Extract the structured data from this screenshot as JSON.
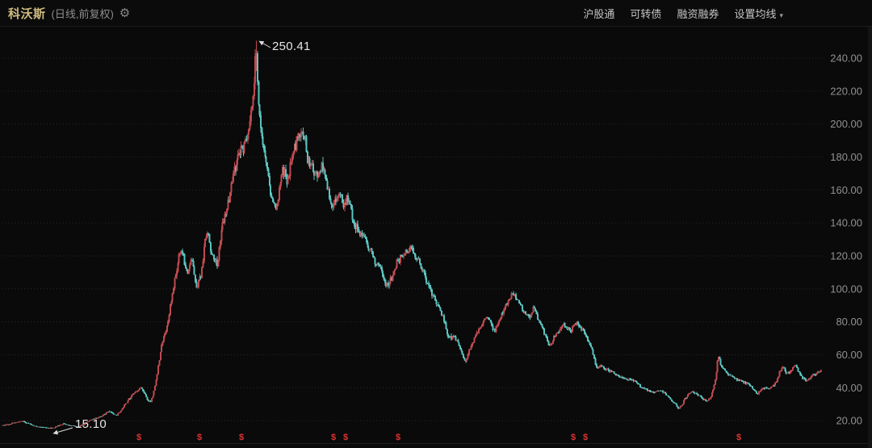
{
  "header": {
    "symbol_name": "科沃斯",
    "chart_mode": "(日线,前复权)",
    "gear_icon": "gear",
    "menu": [
      {
        "label": "沪股通",
        "has_dropdown": false
      },
      {
        "label": "可转债",
        "has_dropdown": false
      },
      {
        "label": "融资融券",
        "has_dropdown": false
      },
      {
        "label": "设置均线",
        "has_dropdown": true
      }
    ],
    "dropdown_caret": "▾"
  },
  "colors": {
    "background": "#0a0a0a",
    "up_candle": "#c04a50",
    "down_candle": "#5ac4c0",
    "grid": "#292929",
    "axis_label": "#909090",
    "symbol_accent": "#cdbb7d",
    "annotation": "#dcdcdc",
    "dividend_marker": "#e03232",
    "header_divider": "#1c1c1c"
  },
  "chart_data": {
    "type": "candlestick",
    "title": "科沃斯 日线 前复权",
    "period": "日线",
    "adjustment": "前复权",
    "legend_position": "none",
    "grid": "horizontal-dotted",
    "y_axis": {
      "side": "right",
      "ticks": [
        "240.00",
        "220.00",
        "200.00",
        "180.00",
        "160.00",
        "140.00",
        "120.00",
        "100.00",
        "80.00",
        "60.00",
        "40.00",
        "20.00"
      ],
      "price_top_gridline": 240,
      "price_step": 20,
      "visible_range_approx": [
        10,
        255
      ]
    },
    "annotations": {
      "peak": {
        "label": "250.41",
        "value": 250.41
      },
      "low": {
        "label": "15.10",
        "value": 15.1
      }
    },
    "all_time_high": 250.41,
    "all_time_low": 15.1,
    "dividend_marker_symbol": "$",
    "dividend_markers_x": [
      172,
      247,
      299,
      413,
      428,
      493,
      710,
      725,
      915
    ],
    "price_path": [
      [
        3,
        17
      ],
      [
        12,
        17.8
      ],
      [
        22,
        19
      ],
      [
        30,
        19.6
      ],
      [
        38,
        18
      ],
      [
        45,
        16.6
      ],
      [
        52,
        16
      ],
      [
        60,
        15.7
      ],
      [
        68,
        15.6
      ],
      [
        74,
        17
      ],
      [
        80,
        18.2
      ],
      [
        86,
        17.2
      ],
      [
        93,
        16.6
      ],
      [
        100,
        16.5
      ],
      [
        106,
        18
      ],
      [
        112,
        20
      ],
      [
        118,
        21
      ],
      [
        124,
        22
      ],
      [
        131,
        24
      ],
      [
        137,
        26
      ],
      [
        142,
        24
      ],
      [
        146,
        23.5
      ],
      [
        151,
        26
      ],
      [
        156,
        30
      ],
      [
        161,
        33
      ],
      [
        166,
        36
      ],
      [
        171,
        38
      ],
      [
        176,
        40
      ],
      [
        181,
        36
      ],
      [
        185,
        32
      ],
      [
        188,
        31
      ],
      [
        192,
        38
      ],
      [
        196,
        48
      ],
      [
        200,
        62
      ],
      [
        204,
        70
      ],
      [
        208,
        76
      ],
      [
        212,
        88
      ],
      [
        216,
        100
      ],
      [
        220,
        112
      ],
      [
        224,
        122
      ],
      [
        227,
        124
      ],
      [
        230,
        116
      ],
      [
        233,
        110
      ],
      [
        236,
        114
      ],
      [
        239,
        118
      ],
      [
        242,
        110
      ],
      [
        245,
        101
      ],
      [
        249,
        106
      ],
      [
        252,
        113
      ],
      [
        255,
        128
      ],
      [
        258,
        136
      ],
      [
        261,
        128
      ],
      [
        264,
        121
      ],
      [
        268,
        116
      ],
      [
        271,
        115
      ],
      [
        274,
        128
      ],
      [
        277,
        140
      ],
      [
        281,
        147
      ],
      [
        284,
        152
      ],
      [
        287,
        160
      ],
      [
        290,
        168
      ],
      [
        294,
        176
      ],
      [
        297,
        182
      ],
      [
        300,
        184
      ],
      [
        303,
        186
      ],
      [
        306,
        190
      ],
      [
        309,
        196
      ],
      [
        312,
        205
      ],
      [
        315,
        220
      ],
      [
        318,
        243
      ],
      [
        320,
        232
      ],
      [
        322,
        212
      ],
      [
        325,
        196
      ],
      [
        327,
        185
      ],
      [
        330,
        180
      ],
      [
        333,
        172
      ],
      [
        336,
        158
      ],
      [
        339,
        152
      ],
      [
        342,
        150
      ],
      [
        345,
        152
      ],
      [
        348,
        162
      ],
      [
        351,
        174
      ],
      [
        354,
        170
      ],
      [
        357,
        164
      ],
      [
        360,
        172
      ],
      [
        363,
        180
      ],
      [
        366,
        185
      ],
      [
        369,
        189
      ],
      [
        372,
        191
      ],
      [
        375,
        194
      ],
      [
        377,
        196
      ],
      [
        380,
        188
      ],
      [
        383,
        178
      ],
      [
        386,
        174
      ],
      [
        390,
        172
      ],
      [
        394,
        170
      ],
      [
        397,
        171
      ],
      [
        400,
        177
      ],
      [
        403,
        170
      ],
      [
        406,
        164
      ],
      [
        409,
        156
      ],
      [
        412,
        152
      ],
      [
        415,
        150
      ],
      [
        418,
        155
      ],
      [
        421,
        160
      ],
      [
        424,
        156
      ],
      [
        427,
        152
      ],
      [
        430,
        154
      ],
      [
        433,
        155
      ],
      [
        436,
        148
      ],
      [
        440,
        139
      ],
      [
        444,
        136
      ],
      [
        447,
        134
      ],
      [
        450,
        132
      ],
      [
        453,
        130
      ],
      [
        456,
        127
      ],
      [
        459,
        124
      ],
      [
        462,
        121
      ],
      [
        465,
        118
      ],
      [
        468,
        115
      ],
      [
        472,
        112
      ],
      [
        475,
        108
      ],
      [
        478,
        104
      ],
      [
        481,
        103
      ],
      [
        484,
        104
      ],
      [
        487,
        108
      ],
      [
        490,
        112
      ],
      [
        493,
        116
      ],
      [
        496,
        118
      ],
      [
        499,
        120
      ],
      [
        502,
        121
      ],
      [
        505,
        123
      ],
      [
        508,
        125
      ],
      [
        511,
        123
      ],
      [
        514,
        121
      ],
      [
        517,
        119
      ],
      [
        520,
        117
      ],
      [
        524,
        112
      ],
      [
        528,
        107
      ],
      [
        531,
        103
      ],
      [
        534,
        100
      ],
      [
        537,
        97
      ],
      [
        540,
        94
      ],
      [
        543,
        91
      ],
      [
        546,
        88
      ],
      [
        549,
        84
      ],
      [
        552,
        80
      ],
      [
        555,
        74
      ],
      [
        558,
        70
      ],
      [
        561,
        71
      ],
      [
        563,
        72
      ],
      [
        566,
        69
      ],
      [
        570,
        66
      ],
      [
        573,
        62
      ],
      [
        576,
        58
      ],
      [
        578,
        56
      ],
      [
        581,
        60
      ],
      [
        584,
        65
      ],
      [
        587,
        68
      ],
      [
        590,
        71
      ],
      [
        593,
        74
      ],
      [
        596,
        76
      ],
      [
        600,
        80
      ],
      [
        604,
        82
      ],
      [
        607,
        82
      ],
      [
        610,
        78
      ],
      [
        613,
        74
      ],
      [
        616,
        77
      ],
      [
        619,
        81
      ],
      [
        622,
        84
      ],
      [
        625,
        87
      ],
      [
        628,
        90
      ],
      [
        631,
        93
      ],
      [
        634,
        96
      ],
      [
        637,
        97
      ],
      [
        640,
        95
      ],
      [
        643,
        92
      ],
      [
        646,
        90
      ],
      [
        649,
        87
      ],
      [
        652,
        85
      ],
      [
        655,
        84
      ],
      [
        658,
        84
      ],
      [
        661,
        87
      ],
      [
        663,
        88
      ],
      [
        666,
        83
      ],
      [
        669,
        80
      ],
      [
        672,
        78
      ],
      [
        675,
        74
      ],
      [
        678,
        70
      ],
      [
        681,
        65
      ],
      [
        684,
        67
      ],
      [
        687,
        70
      ],
      [
        690,
        72
      ],
      [
        693,
        74
      ],
      [
        696,
        76
      ],
      [
        699,
        78
      ],
      [
        702,
        78
      ],
      [
        705,
        75
      ],
      [
        708,
        75
      ],
      [
        711,
        77
      ],
      [
        714,
        79
      ],
      [
        716,
        80
      ],
      [
        719,
        78
      ],
      [
        722,
        76
      ],
      [
        725,
        74
      ],
      [
        728,
        70
      ],
      [
        731,
        67
      ],
      [
        734,
        65
      ],
      [
        737,
        58
      ],
      [
        740,
        53
      ],
      [
        743,
        52
      ],
      [
        746,
        53
      ],
      [
        750,
        52
      ],
      [
        754,
        51
      ],
      [
        758,
        50
      ],
      [
        762,
        49
      ],
      [
        766,
        47
      ],
      [
        770,
        46
      ],
      [
        774,
        46
      ],
      [
        778,
        45
      ],
      [
        782,
        45
      ],
      [
        786,
        44
      ],
      [
        790,
        43
      ],
      [
        794,
        41
      ],
      [
        798,
        40
      ],
      [
        802,
        39
      ],
      [
        806,
        38
      ],
      [
        810,
        37
      ],
      [
        814,
        37.5
      ],
      [
        818,
        38.5
      ],
      [
        821,
        38
      ],
      [
        824,
        37
      ],
      [
        827,
        35.5
      ],
      [
        830,
        34
      ],
      [
        833,
        32
      ],
      [
        836,
        31
      ],
      [
        839,
        29
      ],
      [
        842,
        27
      ],
      [
        845,
        29
      ],
      [
        848,
        32
      ],
      [
        851,
        34
      ],
      [
        854,
        36
      ],
      [
        858,
        37
      ],
      [
        861,
        37
      ],
      [
        864,
        36.5
      ],
      [
        867,
        35.5
      ],
      [
        870,
        34
      ],
      [
        873,
        32.5
      ],
      [
        876,
        31.5
      ],
      [
        879,
        32.5
      ],
      [
        882,
        35
      ],
      [
        885,
        39
      ],
      [
        888,
        48
      ],
      [
        891,
        60
      ],
      [
        893,
        56
      ],
      [
        895,
        53
      ],
      [
        898,
        51
      ],
      [
        901,
        49
      ],
      [
        904,
        48
      ],
      [
        908,
        46.5
      ],
      [
        912,
        45.5
      ],
      [
        916,
        44.5
      ],
      [
        920,
        44
      ],
      [
        923,
        43
      ],
      [
        926,
        42.5
      ],
      [
        929,
        41.5
      ],
      [
        932,
        40.5
      ],
      [
        935,
        38.5
      ],
      [
        938,
        37
      ],
      [
        940,
        36
      ],
      [
        942,
        37.5
      ],
      [
        944,
        39
      ],
      [
        947,
        40
      ],
      [
        950,
        40
      ],
      [
        953,
        39
      ],
      [
        956,
        40
      ],
      [
        959,
        41
      ],
      [
        962,
        43
      ],
      [
        965,
        46
      ],
      [
        968,
        51
      ],
      [
        970,
        53
      ],
      [
        972,
        52
      ],
      [
        974,
        50
      ],
      [
        976,
        48.5
      ],
      [
        979,
        49
      ],
      [
        982,
        52
      ],
      [
        984,
        53
      ],
      [
        986,
        54
      ],
      [
        988,
        52
      ],
      [
        990,
        50
      ],
      [
        993,
        47
      ],
      [
        996,
        45.5
      ],
      [
        999,
        44.5
      ],
      [
        1002,
        44.5
      ],
      [
        1005,
        46
      ],
      [
        1008,
        47.5
      ],
      [
        1011,
        48.5
      ],
      [
        1014,
        49
      ],
      [
        1018,
        51
      ]
    ]
  }
}
